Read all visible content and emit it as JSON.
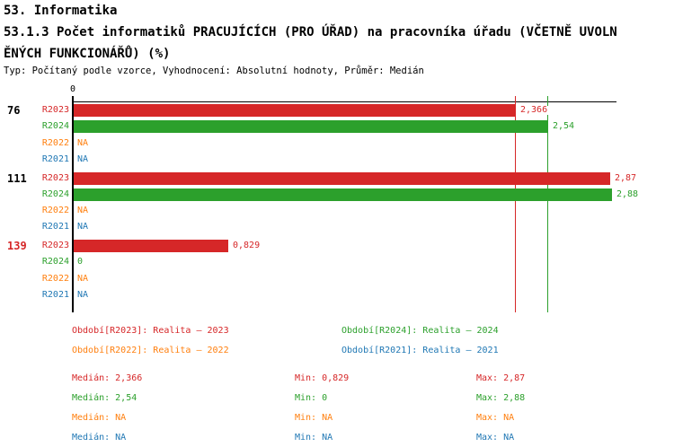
{
  "header": {
    "title": "53. Informatika",
    "subtitle_line1": "53.1.3 Počet informatiků PRACUJÍCÍCH (PRO ÚŘAD) na pracovníka úřadu (VČETNĚ UVOLN",
    "subtitle_line2": "ĚNÝCH FUNKCIONÁŘŮ) (%)",
    "meta": "Typ: Počítaný podle vzorce, Vyhodnocení: Absolutní hodnoty, Průměr: Medián"
  },
  "colors": {
    "R2023": "#d62728",
    "R2024": "#2ca02c",
    "R2022": "#ff7f0e",
    "R2021": "#1f77b4",
    "axis": "#000000",
    "highlight_group_label": "#d62728",
    "normal_group_label": "#000000"
  },
  "chart_data": {
    "type": "bar",
    "orientation": "horizontal",
    "value_unit": "%",
    "title": "53.1.3 Počet informatiků PRACUJÍCÍCH (PRO ÚŘAD) na pracovníka úřadu (VČETNĚ UVOLNĚNÝCH FUNKCIONÁŘŮ) (%)",
    "x_axis": {
      "zero_label": "0",
      "min": 0,
      "max": 2.9,
      "gridlines": false
    },
    "series_order": [
      "R2023",
      "R2024",
      "R2022",
      "R2021"
    ],
    "median_lines": [
      {
        "series": "R2023",
        "value": 2.366
      },
      {
        "series": "R2024",
        "value": 2.54
      }
    ],
    "groups": [
      {
        "label": "76",
        "label_highlighted": false,
        "rows": [
          {
            "series": "R2023",
            "value": 2.366,
            "display": "2,366"
          },
          {
            "series": "R2024",
            "value": 2.54,
            "display": "2,54"
          },
          {
            "series": "R2022",
            "value": null,
            "display": "NA"
          },
          {
            "series": "R2021",
            "value": null,
            "display": "NA"
          }
        ]
      },
      {
        "label": "111",
        "label_highlighted": false,
        "rows": [
          {
            "series": "R2023",
            "value": 2.87,
            "display": "2,87"
          },
          {
            "series": "R2024",
            "value": 2.88,
            "display": "2,88"
          },
          {
            "series": "R2022",
            "value": null,
            "display": "NA"
          },
          {
            "series": "R2021",
            "value": null,
            "display": "NA"
          }
        ]
      },
      {
        "label": "139",
        "label_highlighted": true,
        "rows": [
          {
            "series": "R2023",
            "value": 0.829,
            "display": "0,829"
          },
          {
            "series": "R2024",
            "value": 0,
            "display": "0"
          },
          {
            "series": "R2022",
            "value": null,
            "display": "NA"
          },
          {
            "series": "R2021",
            "value": null,
            "display": "NA"
          }
        ]
      }
    ]
  },
  "legend": {
    "items": [
      {
        "series": "R2023",
        "label": "Období[R2023]: Realita – 2023"
      },
      {
        "series": "R2024",
        "label": "Období[R2024]: Realita – 2024"
      },
      {
        "series": "R2022",
        "label": "Období[R2022]: Realita – 2022"
      },
      {
        "series": "R2021",
        "label": "Období[R2021]: Realita – 2021"
      }
    ]
  },
  "stats": {
    "rows": [
      {
        "series": "R2023",
        "median": "Medián: 2,366",
        "min": "Min: 0,829",
        "max": "Max: 2,87"
      },
      {
        "series": "R2024",
        "median": "Medián: 2,54",
        "min": "Min: 0",
        "max": "Max: 2,88"
      },
      {
        "series": "R2022",
        "median": "Medián: NA",
        "min": "Min: NA",
        "max": "Max: NA"
      },
      {
        "series": "R2021",
        "median": "Medián: NA",
        "min": "Min: NA",
        "max": "Max: NA"
      }
    ]
  }
}
